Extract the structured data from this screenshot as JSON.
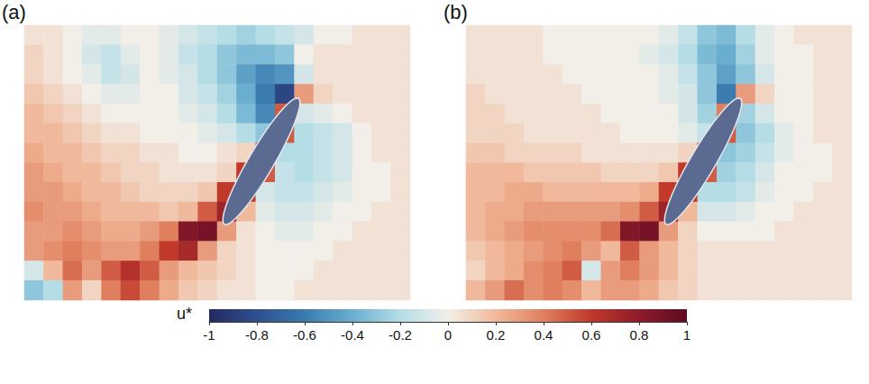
{
  "chart_data": {
    "type": "heatmap",
    "panels": [
      {
        "title": "(a)",
        "cells": [
          [
            0.05,
            0.05,
            0.0,
            -0.05,
            -0.05,
            0.0,
            0.0,
            -0.05,
            -0.1,
            -0.15,
            -0.2,
            -0.25,
            -0.2,
            -0.15,
            -0.1,
            0.0,
            0.0,
            0.05,
            0.05,
            0.05
          ],
          [
            0.1,
            0.05,
            0.0,
            -0.1,
            -0.15,
            -0.05,
            0.0,
            -0.05,
            -0.15,
            -0.2,
            -0.3,
            -0.35,
            -0.35,
            -0.3,
            0.0,
            0.05,
            0.05,
            0.05,
            0.05,
            0.05
          ],
          [
            0.1,
            0.05,
            0.0,
            -0.05,
            -0.15,
            -0.1,
            0.0,
            -0.05,
            -0.1,
            -0.2,
            -0.3,
            -0.45,
            -0.55,
            -0.5,
            -0.1,
            0.05,
            0.05,
            0.05,
            0.05,
            0.05
          ],
          [
            0.15,
            0.1,
            0.05,
            0.0,
            -0.05,
            -0.05,
            0.0,
            0.0,
            -0.1,
            -0.15,
            -0.25,
            -0.4,
            -0.6,
            -0.85,
            0.3,
            0.1,
            0.05,
            0.05,
            0.05,
            0.05
          ],
          [
            0.2,
            0.15,
            0.1,
            0.05,
            0.0,
            0.0,
            0.0,
            0.0,
            -0.05,
            -0.1,
            -0.2,
            -0.35,
            -0.55,
            0.5,
            -0.1,
            -0.05,
            0.0,
            0.05,
            0.05,
            0.05
          ],
          [
            0.2,
            0.2,
            0.15,
            0.1,
            0.05,
            0.05,
            0.0,
            0.0,
            0.0,
            -0.05,
            -0.1,
            -0.2,
            -0.3,
            0.5,
            -0.2,
            -0.15,
            -0.1,
            0.0,
            0.05,
            0.05
          ],
          [
            0.25,
            0.2,
            0.2,
            0.15,
            0.1,
            0.1,
            0.05,
            0.05,
            0.0,
            0.0,
            0.05,
            0.1,
            0.6,
            -0.2,
            -0.2,
            -0.15,
            -0.1,
            0.0,
            0.05,
            0.05
          ],
          [
            0.3,
            0.25,
            0.2,
            0.2,
            0.15,
            0.1,
            0.1,
            0.05,
            0.05,
            0.05,
            0.1,
            0.6,
            0.5,
            -0.15,
            -0.2,
            -0.15,
            -0.1,
            0.0,
            0.0,
            0.05
          ],
          [
            0.3,
            0.3,
            0.25,
            0.2,
            0.2,
            0.15,
            0.1,
            0.1,
            0.1,
            0.15,
            0.6,
            0.6,
            -0.1,
            -0.15,
            -0.15,
            -0.1,
            -0.05,
            0.0,
            0.0,
            0.05
          ],
          [
            0.35,
            0.3,
            0.3,
            0.25,
            0.2,
            0.2,
            0.2,
            0.15,
            0.2,
            0.5,
            0.75,
            0.2,
            -0.05,
            -0.1,
            -0.1,
            -0.05,
            0.0,
            0.0,
            0.05,
            0.05
          ],
          [
            0.3,
            0.3,
            0.35,
            0.3,
            0.25,
            0.25,
            0.3,
            0.4,
            0.85,
            0.9,
            0.3,
            0.05,
            0.0,
            -0.05,
            -0.05,
            0.0,
            0.0,
            0.05,
            0.05,
            0.05
          ],
          [
            0.3,
            0.35,
            0.4,
            0.35,
            0.3,
            0.3,
            0.4,
            0.6,
            0.7,
            0.3,
            0.1,
            0.05,
            0.0,
            0.0,
            0.0,
            0.0,
            0.05,
            0.05,
            0.05,
            0.05
          ],
          [
            -0.1,
            0.2,
            0.45,
            0.3,
            0.5,
            0.65,
            0.5,
            0.3,
            0.2,
            0.15,
            0.1,
            0.05,
            0.0,
            0.0,
            0.0,
            0.05,
            0.05,
            0.05,
            0.05,
            0.05
          ],
          [
            -0.3,
            -0.2,
            0.3,
            0.1,
            0.4,
            0.55,
            0.4,
            0.25,
            0.15,
            0.1,
            0.05,
            0.05,
            0.0,
            0.0,
            0.05,
            0.05,
            0.05,
            0.05,
            0.05,
            0.05
          ]
        ]
      },
      {
        "title": "(b)",
        "cells": [
          [
            0.05,
            0.05,
            0.05,
            0.05,
            0.0,
            0.0,
            0.0,
            0.0,
            0.0,
            0.0,
            -0.05,
            -0.15,
            -0.3,
            -0.35,
            -0.2,
            -0.05,
            0.0,
            0.05,
            0.05,
            0.05
          ],
          [
            0.05,
            0.05,
            0.05,
            0.05,
            0.0,
            0.0,
            0.0,
            0.0,
            0.0,
            -0.05,
            -0.1,
            -0.2,
            -0.35,
            -0.4,
            -0.25,
            -0.05,
            0.0,
            0.0,
            0.05,
            0.05
          ],
          [
            0.05,
            0.05,
            0.05,
            0.05,
            0.05,
            0.0,
            0.0,
            0.0,
            0.0,
            0.0,
            -0.05,
            -0.15,
            -0.3,
            -0.45,
            -0.3,
            -0.1,
            0.0,
            0.0,
            0.05,
            0.05
          ],
          [
            0.1,
            0.05,
            0.05,
            0.05,
            0.05,
            0.05,
            0.0,
            0.0,
            0.0,
            0.0,
            -0.05,
            -0.1,
            -0.3,
            -0.6,
            0.3,
            0.1,
            0.0,
            0.0,
            0.05,
            0.05
          ],
          [
            0.1,
            0.1,
            0.05,
            0.05,
            0.05,
            0.05,
            0.05,
            0.0,
            0.0,
            0.0,
            0.0,
            -0.1,
            -0.25,
            0.4,
            -0.25,
            -0.1,
            0.0,
            0.0,
            0.05,
            0.05
          ],
          [
            0.1,
            0.1,
            0.1,
            0.05,
            0.05,
            0.05,
            0.05,
            0.05,
            0.0,
            0.0,
            0.0,
            -0.05,
            -0.15,
            0.5,
            -0.3,
            -0.2,
            -0.05,
            0.0,
            0.05,
            0.05
          ],
          [
            0.15,
            0.15,
            0.1,
            0.1,
            0.1,
            0.1,
            0.05,
            0.05,
            0.05,
            0.05,
            0.05,
            0.1,
            0.6,
            -0.3,
            -0.25,
            -0.15,
            -0.05,
            0.0,
            0.0,
            0.05
          ],
          [
            0.2,
            0.2,
            0.2,
            0.15,
            0.15,
            0.15,
            0.15,
            0.1,
            0.1,
            0.1,
            0.15,
            0.6,
            0.5,
            -0.25,
            -0.2,
            -0.1,
            0.0,
            0.0,
            0.0,
            0.05
          ],
          [
            0.2,
            0.2,
            0.25,
            0.25,
            0.2,
            0.2,
            0.2,
            0.2,
            0.2,
            0.25,
            0.6,
            0.6,
            -0.2,
            -0.2,
            -0.15,
            -0.05,
            0.0,
            0.0,
            0.05,
            0.05
          ],
          [
            0.2,
            0.25,
            0.25,
            0.3,
            0.3,
            0.3,
            0.3,
            0.3,
            0.35,
            0.5,
            0.75,
            0.2,
            -0.1,
            -0.1,
            -0.05,
            0.0,
            0.0,
            0.05,
            0.05,
            0.05
          ],
          [
            0.2,
            0.25,
            0.3,
            0.35,
            0.35,
            0.35,
            0.35,
            0.45,
            0.85,
            0.9,
            0.3,
            0.1,
            0.0,
            0.0,
            0.0,
            0.0,
            0.05,
            0.05,
            0.05,
            0.05
          ],
          [
            0.15,
            0.2,
            0.25,
            0.3,
            0.35,
            0.4,
            0.3,
            0.2,
            0.5,
            0.3,
            0.2,
            0.1,
            0.05,
            0.05,
            0.05,
            0.05,
            0.05,
            0.05,
            0.05,
            0.05
          ],
          [
            0.1,
            0.2,
            0.25,
            0.35,
            0.4,
            0.5,
            -0.1,
            0.3,
            0.4,
            0.3,
            0.2,
            0.1,
            0.05,
            0.05,
            0.05,
            0.05,
            0.05,
            0.05,
            0.05,
            0.05
          ],
          [
            0.2,
            0.3,
            0.45,
            0.35,
            0.4,
            0.35,
            0.2,
            0.3,
            0.3,
            0.25,
            0.15,
            0.1,
            0.05,
            0.05,
            0.05,
            0.05,
            0.05,
            0.05,
            0.05,
            0.05
          ]
        ]
      }
    ],
    "colorbar": {
      "label": "u*",
      "range": [
        -1,
        1
      ],
      "ticks": [
        -1,
        -0.8,
        -0.6,
        -0.4,
        -0.2,
        0,
        0.2,
        0.4,
        0.6,
        0.8,
        1
      ]
    }
  }
}
